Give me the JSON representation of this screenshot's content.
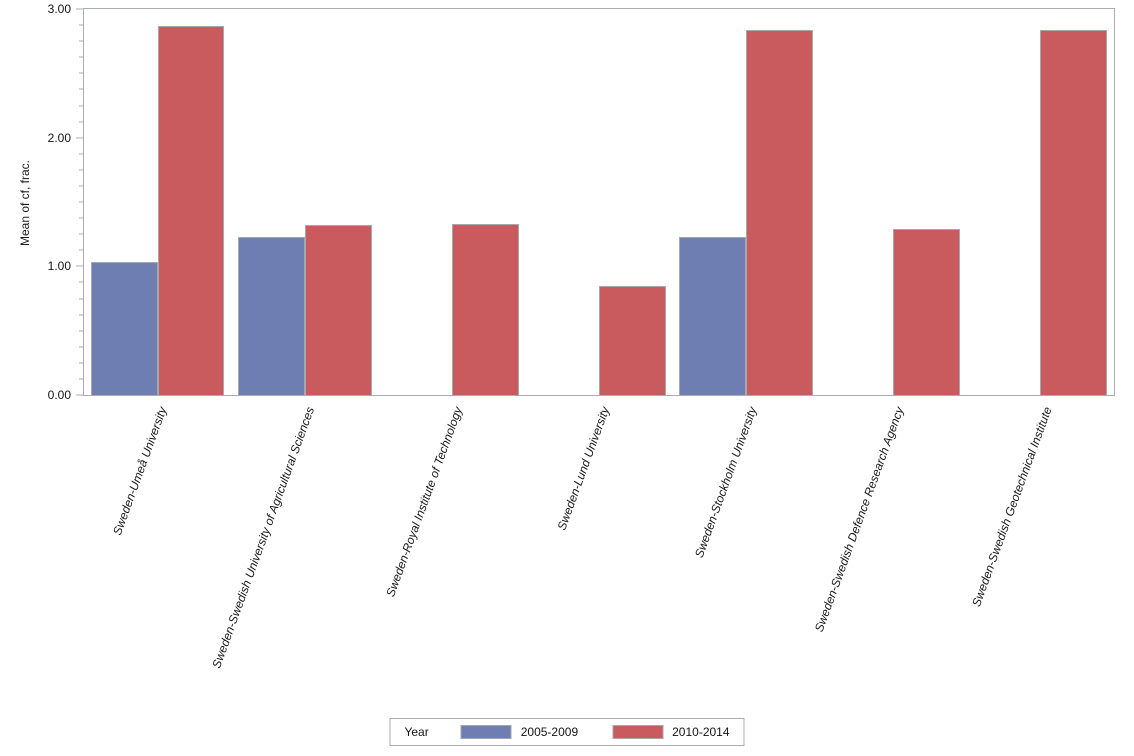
{
  "chart_data": {
    "type": "bar",
    "title": "",
    "ylabel": "Mean of cf, frac.",
    "xlabel": "",
    "ylim": [
      0,
      3
    ],
    "yticks": [
      0,
      1,
      2,
      3
    ],
    "ytick_labels": [
      "0.00",
      "1.00",
      "2.00",
      "3.00"
    ],
    "y_minor_divisions": 8,
    "grid": "off",
    "legend_title": "Year",
    "legend_position": "bottom",
    "categories": [
      "Sweden-Umeå University",
      "Sweden-Swedish University of Agricultural Sciences",
      "Sweden-Royal Institute of Technology",
      "Sweden-Lund University",
      "Sweden-Stockholm University",
      "Sweden-Swedish Defence Research Agency",
      "Sweden-Swedish Geotechnical Institute"
    ],
    "series": [
      {
        "name": "2005-2009",
        "color": "#6F7EB2",
        "values": [
          1.03,
          1.23,
          0,
          0,
          1.23,
          0,
          0
        ]
      },
      {
        "name": "2010-2014",
        "color": "#C95B5E",
        "values": [
          2.87,
          1.32,
          1.33,
          0.85,
          2.84,
          1.29,
          2.84
        ]
      }
    ],
    "bar_border_color": "#A5A8AE",
    "axis_color": "#A9ACB1"
  }
}
